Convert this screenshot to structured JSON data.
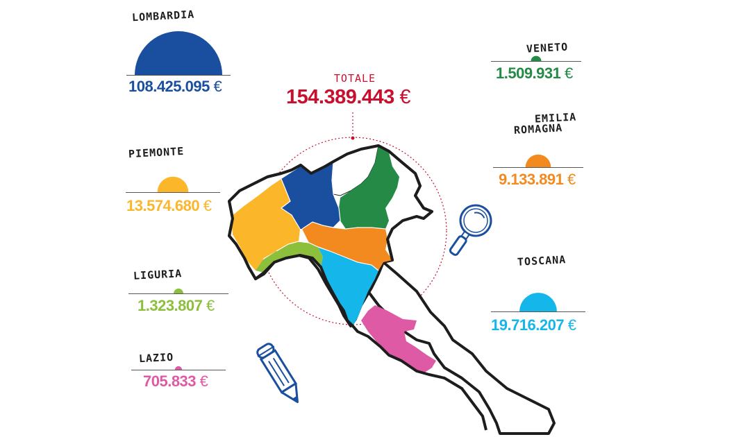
{
  "colors": {
    "lombardia": "#1a4f9f",
    "veneto": "#248a45",
    "emilia_romagna": "#f28a1f",
    "piemonte": "#fbb62a",
    "liguria": "#8cc03c",
    "toscana": "#15b6ea",
    "lazio": "#df5aa4",
    "totale": "#c8102e",
    "outline": "#1d1d1d"
  },
  "total": {
    "label": "TOTALE",
    "value": "154.389.443",
    "currency": "€"
  },
  "chart_data": {
    "type": "semicircle-proportional",
    "unit": "€",
    "title": "TOTALE",
    "total": 154389443,
    "regions": [
      {
        "key": "lombardia",
        "label": "LOMBARDIA",
        "value": 108425095,
        "display": "108.425.095",
        "color": "#1a4f9f"
      },
      {
        "key": "veneto",
        "label": "VENETO",
        "value": 1509931,
        "display": "1.509.931",
        "color": "#248a45"
      },
      {
        "key": "emilia_romagna",
        "label": "EMILIA ROMAGNA",
        "label_line1": "EMILIA",
        "label_line2": "ROMAGNA",
        "value": 9133891,
        "display": "9.133.891",
        "color": "#f28a1f"
      },
      {
        "key": "piemonte",
        "label": "PIEMONTE",
        "value": 13574680,
        "display": "13.574.680",
        "color": "#fbb62a"
      },
      {
        "key": "liguria",
        "label": "LIGURIA",
        "value": 1323807,
        "display": "1.323.807",
        "color": "#8cc03c"
      },
      {
        "key": "toscana",
        "label": "TOSCANA",
        "value": 19716207,
        "display": "19.716.207",
        "color": "#15b6ea"
      },
      {
        "key": "lazio",
        "label": "LAZIO",
        "value": 705833,
        "display": "705.833",
        "color": "#df5aa4"
      }
    ]
  },
  "icons": [
    "magnifier-icon",
    "pencil-icon"
  ]
}
